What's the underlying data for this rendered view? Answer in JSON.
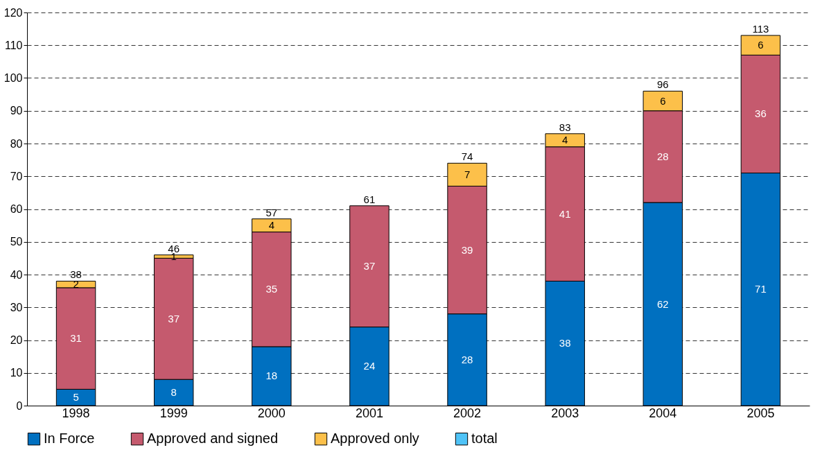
{
  "chart_data": {
    "type": "bar",
    "stacked": true,
    "categories": [
      "1998",
      "1999",
      "2000",
      "2001",
      "2002",
      "2003",
      "2004",
      "2005"
    ],
    "series": [
      {
        "name": "In Force",
        "color": "#0070c0",
        "values": [
          5,
          8,
          18,
          24,
          28,
          38,
          62,
          71
        ]
      },
      {
        "name": "Approved and signed",
        "color": "#c55a6e",
        "values": [
          31,
          37,
          35,
          37,
          39,
          41,
          28,
          36
        ]
      },
      {
        "name": "Approved only",
        "color": "#fcc04a",
        "values": [
          2,
          1,
          4,
          null,
          7,
          4,
          6,
          6
        ]
      },
      {
        "name": "total",
        "color": "#4fc3f7",
        "values": [
          null,
          null,
          null,
          null,
          null,
          null,
          null,
          null
        ]
      }
    ],
    "totals": [
      "38",
      "46",
      "57",
      "61",
      "74",
      "83",
      "96",
      "113"
    ],
    "data_labels": true,
    "ylim": [
      0,
      120
    ],
    "yticks": [
      0,
      10,
      20,
      30,
      40,
      50,
      60,
      70,
      80,
      90,
      100,
      110,
      120
    ],
    "grid": "y",
    "legend": "bottom"
  }
}
